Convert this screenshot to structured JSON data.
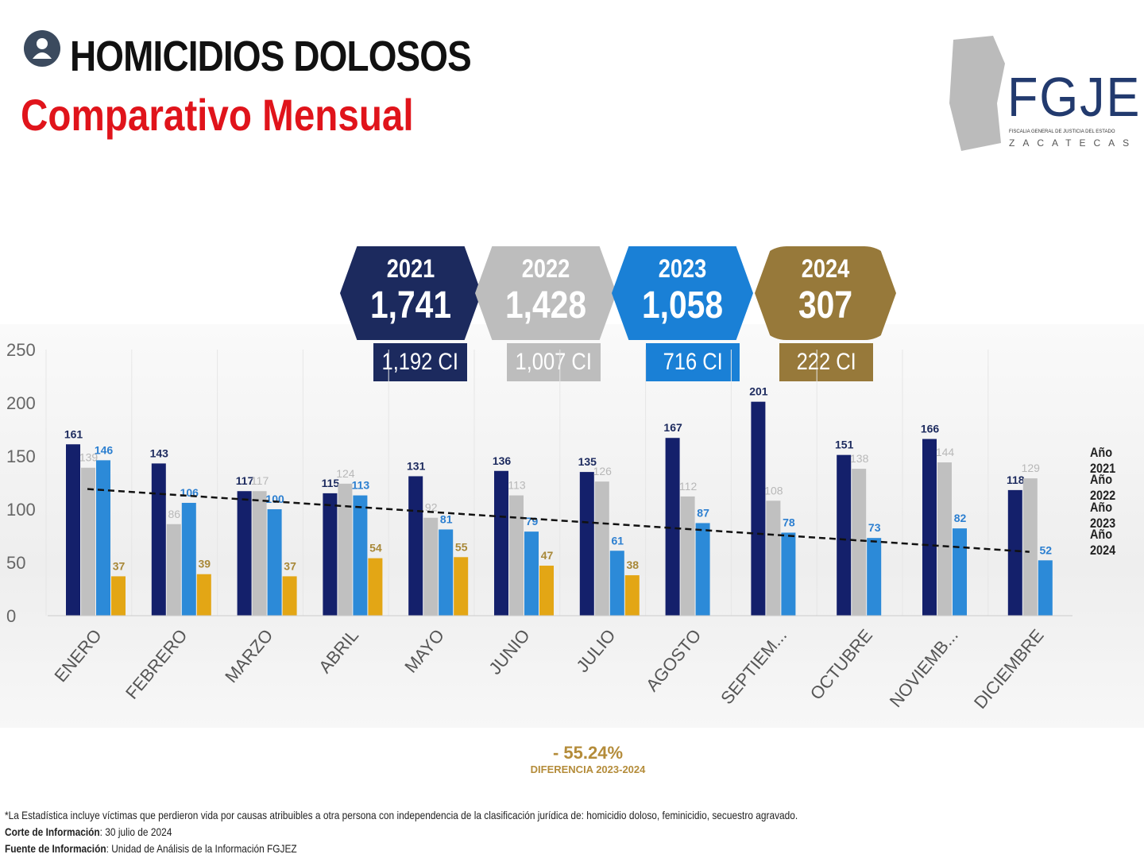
{
  "header": {
    "title": "HOMICIDIOS DOLOSOS",
    "subtitle": "Comparativo Mensual"
  },
  "logo": {
    "text": "FGJE",
    "line1": "FISCALIA GENERAL DE JUSTICIA DEL ESTADO",
    "line2": "ZACATECAS"
  },
  "totals": [
    {
      "year": "2021",
      "value": "1,741",
      "ci": "1,192 CI",
      "color": "#1c2a5e"
    },
    {
      "year": "2022",
      "value": "1,428",
      "ci": "1,007 CI",
      "color": "#bdbdbd"
    },
    {
      "year": "2023",
      "value": "1,058",
      "ci": "716 CI",
      "color": "#1a80d6"
    },
    {
      "year": "2024",
      "value": "307",
      "ci": "222 CI",
      "color": "#97793a"
    }
  ],
  "chart_data": {
    "type": "bar",
    "categories": [
      "ENERO",
      "FEBRERO",
      "MARZO",
      "ABRIL",
      "MAYO",
      "JUNIO",
      "JULIO",
      "AGOSTO",
      "SEPTIEM...",
      "OCTUBRE",
      "NOVIEMB...",
      "DICIEMBRE"
    ],
    "series": [
      {
        "name": "Año 2021",
        "color": "#14206b",
        "label_color": "#1c2a5e",
        "values": [
          161,
          143,
          117,
          115,
          131,
          136,
          135,
          167,
          201,
          151,
          166,
          118
        ]
      },
      {
        "name": "Año 2022",
        "color": "#c0c0c0",
        "label_color": "#b8b8b8",
        "values": [
          139,
          86,
          117,
          124,
          92,
          113,
          126,
          112,
          108,
          138,
          144,
          129
        ]
      },
      {
        "name": "Año 2023",
        "color": "#2c8ad8",
        "label_color": "#2c7fd0",
        "values": [
          146,
          106,
          100,
          113,
          81,
          79,
          61,
          87,
          78,
          73,
          82,
          52
        ]
      },
      {
        "name": "Año 2024",
        "color": "#e3a615",
        "label_color": "#a88838",
        "values": [
          37,
          39,
          37,
          54,
          55,
          47,
          38,
          null,
          null,
          null,
          null,
          null
        ]
      }
    ],
    "trendline": {
      "style": "dashed",
      "start": 119,
      "end": 60
    },
    "yticks": [
      0,
      50,
      100,
      150,
      200,
      250
    ],
    "ylim": [
      0,
      250
    ],
    "legend": "right"
  },
  "difference": {
    "percent": "- 55.24%",
    "label": "DIFERENCIA 2023-2024"
  },
  "footer": {
    "note": "*La Estadística incluye víctimas que perdieron vida por causas atribuibles a otra persona con independencia de la clasificación jurídica de: homicidio doloso, feminicidio, secuestro agravado.",
    "corte_label": "Corte de Información",
    "corte_value": ": 30 julio de 2024",
    "fuente_label": "Fuente de Información",
    "fuente_value": ": Unidad de Análisis de la Información FGJEZ"
  }
}
